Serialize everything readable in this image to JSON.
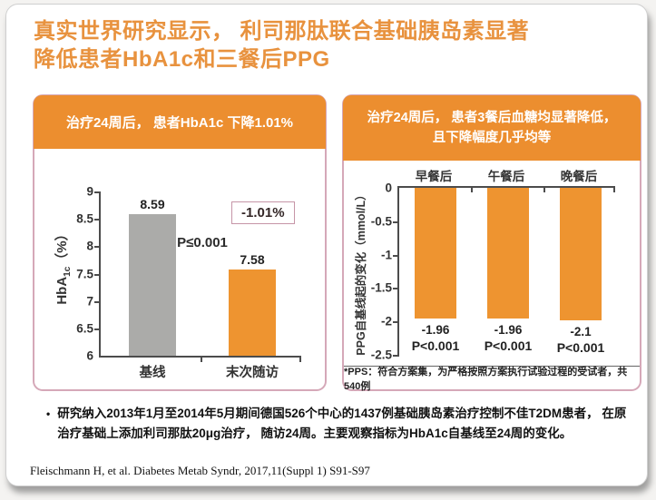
{
  "slide": {
    "title_line1": "真实世界研究显示， 利司那肽联合基础胰岛素显著",
    "title_line2": "降低患者HbA1c和三餐后PPG",
    "bullet": "•",
    "study_note": "研究纳入2013年1月至2014年5月期间德国526个中心的1437例基础胰岛素治疗控制不佳T2DM患者， 在原治疗基础上添加利司那肽20μg治疗， 随访24周。主要观察指标为HbA1c自基线至24周的变化。",
    "reference": "Fleischmann H, et al. Diabetes Metab Syndr, 2017,11(Suppl 1) S91-S97"
  },
  "colors": {
    "title_orange": "#E8923E",
    "header_orange": "#EC8E2F",
    "bar_orange": "#EE9430",
    "bar_gray": "#ABABA9",
    "panel_border_pink": "#D5A8B8",
    "axis_dark": "#4C4C4C"
  },
  "chart_data": [
    {
      "type": "bar",
      "title": "治疗24周后， 患者HbA1c 下降1.01%",
      "categories": [
        "基线",
        "末次随访"
      ],
      "values": [
        8.59,
        7.58
      ],
      "bar_colors": [
        "#ABABA9",
        "#EE9430"
      ],
      "ylabel": "HbA1c（%）",
      "ylabel_parts": {
        "pre": "HbA",
        "sub": "1c",
        "post": "（%）"
      },
      "ylim": [
        6,
        9
      ],
      "yticks": [
        9,
        8.5,
        8,
        7.5,
        7,
        6.5,
        6
      ],
      "p_text": "P≤0.001",
      "change_label": "-1.01%",
      "grid": false,
      "legend": false
    },
    {
      "type": "bar",
      "title": "治疗24周后，患者3餐后血糖均显著降低，且下降幅度几乎均等",
      "title_line1": "治疗24周后， 患者3餐后血糖均显著降低，",
      "title_line2": "且下降幅度几乎均等",
      "baseline": "top",
      "categories": [
        "早餐后",
        "午餐后",
        "晚餐后"
      ],
      "values": [
        -1.96,
        -1.96,
        -2.1
      ],
      "p_values": [
        "P<0.001",
        "P<0.001",
        "P<0.001"
      ],
      "bar_colors": [
        "#EE9430",
        "#EE9430",
        "#EE9430"
      ],
      "ylabel": "PPG自基线起的变化（mmol/L）",
      "ylim": [
        -2.5,
        0
      ],
      "yticks": [
        0,
        -0.5,
        -1,
        -1.5,
        -2,
        -2.5
      ],
      "footnote": "*PPS：符合方案集，为严格按照方案执行试验过程的受试者，共540例",
      "grid": false,
      "legend": false
    }
  ]
}
